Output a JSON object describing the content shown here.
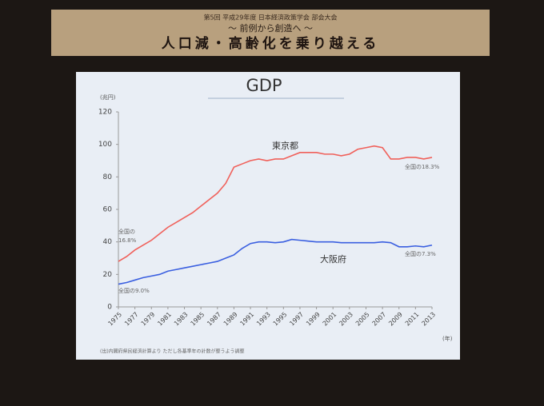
{
  "banner": {
    "line1": "第5回 平成29年度 日本経済政策学会 部会大会",
    "line2": "〜 前例から創造へ 〜",
    "line3": "人口減・高齢化を乗り越える"
  },
  "chart_data": {
    "type": "line",
    "title": "GDP",
    "y_unit": "(兆円)",
    "x_unit": "(年)",
    "source_note": "(出)内閣府県民経済計算より ただし各基準年の計数が整うよう調整",
    "annotations": [
      "東京都",
      "大阪府",
      "全国の",
      "16.8%",
      "全国の9.0%",
      "全国の18.3%",
      "全国の7.3%"
    ],
    "x": [
      1975,
      1976,
      1977,
      1978,
      1979,
      1980,
      1981,
      1982,
      1983,
      1984,
      1985,
      1986,
      1987,
      1988,
      1989,
      1990,
      1991,
      1992,
      1993,
      1994,
      1995,
      1996,
      1997,
      1998,
      1999,
      2000,
      2001,
      2002,
      2003,
      2004,
      2005,
      2006,
      2007,
      2008,
      2009,
      2010,
      2011,
      2012,
      2013
    ],
    "series": [
      {
        "name": "東京都",
        "color": "#f0605a",
        "values": [
          28,
          31,
          35,
          38,
          41,
          45,
          49,
          52,
          55,
          58,
          62,
          66,
          70,
          76,
          86,
          88,
          90,
          91,
          90,
          91,
          91,
          93,
          95,
          95,
          95,
          94,
          94,
          93,
          94,
          97,
          98,
          99,
          98,
          91,
          91,
          92,
          92,
          91,
          92
        ]
      },
      {
        "name": "大阪府",
        "color": "#3a5fe0",
        "values": [
          14,
          15,
          16.5,
          18,
          19,
          20,
          22,
          23,
          24,
          25,
          26,
          27,
          28,
          30,
          32,
          36,
          39,
          40,
          40,
          39.5,
          40,
          41.5,
          41,
          40.5,
          40,
          40,
          40,
          39.5,
          39.5,
          39.5,
          39.5,
          39.5,
          40,
          39.5,
          37,
          37,
          37.5,
          37,
          38
        ]
      }
    ],
    "xlim": [
      1975,
      2013
    ],
    "xticks": [
      1975,
      1977,
      1979,
      1981,
      1983,
      1985,
      1987,
      1989,
      1991,
      1993,
      1995,
      1997,
      1999,
      2001,
      2003,
      2005,
      2007,
      2009,
      2011,
      2013
    ],
    "ylim": [
      0,
      120
    ],
    "yticks": [
      0,
      20,
      40,
      60,
      80,
      100,
      120
    ]
  }
}
